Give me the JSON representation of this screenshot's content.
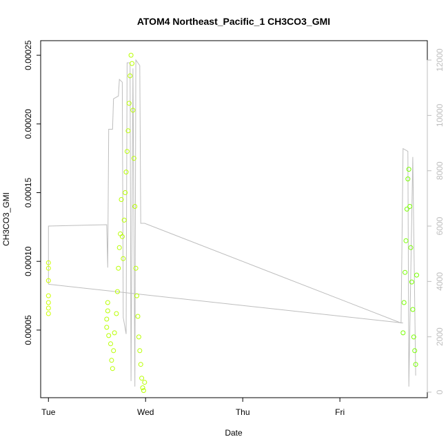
{
  "chart_data": {
    "type": "scatter",
    "title": "ATOM4 Northeast_Pacific_1 CH3CO3_GMI",
    "xlabel": "Date",
    "ylabel": "CH3CO3_GMI",
    "x_ticks": [
      "Tue",
      "Wed",
      "Thu",
      "Fri"
    ],
    "xlim_days": [
      -0.08,
      3.9
    ],
    "ylim": [
      8e-07,
      0.0002606
    ],
    "y_ticks": [
      "0.00005",
      "0.00010",
      "0.00015",
      "0.00020",
      "0.00025"
    ],
    "y_tick_values": [
      5e-05,
      0.0001,
      0.00015,
      0.0002,
      0.00025
    ],
    "right_axis": {
      "ylim": [
        -200,
        12700
      ],
      "ticks": [
        "0",
        "2000",
        "4000",
        "6000",
        "8000",
        "10000",
        "12000"
      ],
      "tick_values": [
        0,
        2000,
        4000,
        6000,
        8000,
        10000,
        12000
      ],
      "color": "#bdbdbd"
    },
    "grid": false,
    "legend": "none",
    "colors": {
      "points_early": "#ccff00",
      "points_mid": "#b8ff00",
      "points_late": "#77ff00",
      "altitude_line": "#bdbdbd"
    },
    "series": [
      {
        "kind": "points",
        "values": [
          [
            0.0,
            6.2e-05
          ],
          [
            0.0,
            6.6e-05
          ],
          [
            0.0,
            7e-05
          ],
          [
            0.0,
            7.5e-05
          ],
          [
            0.0,
            8.6e-05
          ],
          [
            0.0,
            9.5e-05
          ],
          [
            0.0,
            9.9e-05
          ],
          [
            0.6,
            5.2e-05
          ],
          [
            0.6,
            5.8e-05
          ],
          [
            0.61,
            6.4e-05
          ],
          [
            0.61,
            7e-05
          ],
          [
            0.62,
            4.6e-05
          ],
          [
            0.64,
            4e-05
          ],
          [
            0.65,
            2.8e-05
          ],
          [
            0.66,
            2.2e-05
          ],
          [
            0.67,
            3.5e-05
          ],
          [
            0.68,
            4.8e-05
          ],
          [
            0.7,
            6.2e-05
          ],
          [
            0.71,
            7.8e-05
          ],
          [
            0.72,
            9.5e-05
          ],
          [
            0.73,
            0.00011
          ],
          [
            0.74,
            0.00012
          ],
          [
            0.75,
            0.000145
          ],
          [
            0.76,
            0.000118
          ],
          [
            0.77,
            0.000102
          ],
          [
            0.78,
            0.00013
          ],
          [
            0.79,
            0.00015
          ],
          [
            0.8,
            0.000165
          ],
          [
            0.81,
            0.00018
          ],
          [
            0.82,
            0.000195
          ],
          [
            0.83,
            0.000215
          ],
          [
            0.84,
            0.000235
          ],
          [
            0.85,
            0.00025
          ],
          [
            0.86,
            0.000244
          ],
          [
            0.87,
            0.00021
          ],
          [
            0.88,
            0.000175
          ],
          [
            0.89,
            0.00014
          ],
          [
            0.9,
            9.5e-05
          ],
          [
            0.91,
            7.5e-05
          ],
          [
            0.92,
            6e-05
          ],
          [
            0.93,
            4.5e-05
          ],
          [
            0.94,
            3.5e-05
          ],
          [
            0.95,
            2.5e-05
          ],
          [
            0.96,
            1.5e-05
          ],
          [
            0.97,
            8e-06
          ],
          [
            0.98,
            6e-06
          ],
          [
            0.99,
            1.2e-05
          ],
          [
            3.65,
            4.8e-05
          ],
          [
            3.66,
            7e-05
          ],
          [
            3.67,
            9.2e-05
          ],
          [
            3.68,
            0.000115
          ],
          [
            3.69,
            0.000138
          ],
          [
            3.7,
            0.00016
          ],
          [
            3.71,
            0.000167
          ],
          [
            3.72,
            0.00014
          ],
          [
            3.73,
            0.00011
          ],
          [
            3.74,
            8.5e-05
          ],
          [
            3.75,
            6.5e-05
          ],
          [
            3.76,
            4.5e-05
          ],
          [
            3.77,
            3.5e-05
          ],
          [
            3.78,
            2.5e-05
          ],
          [
            3.79,
            9e-05
          ]
        ]
      },
      {
        "kind": "line",
        "axis": "right",
        "values": [
          [
            0.0,
            3900
          ],
          [
            0.0,
            6000
          ],
          [
            0.6,
            6050
          ],
          [
            0.61,
            4500
          ],
          [
            0.62,
            9500
          ],
          [
            0.66,
            9500
          ],
          [
            0.67,
            10600
          ],
          [
            0.72,
            10700
          ],
          [
            0.73,
            11300
          ],
          [
            0.76,
            11200
          ],
          [
            0.77,
            2700
          ],
          [
            0.8,
            2100
          ],
          [
            0.81,
            11900
          ],
          [
            0.84,
            11900
          ],
          [
            0.85,
            400
          ],
          [
            0.87,
            11700
          ],
          [
            0.89,
            200
          ],
          [
            0.9,
            12000
          ],
          [
            0.94,
            11800
          ],
          [
            0.95,
            6100
          ],
          [
            0.99,
            6100
          ],
          [
            3.63,
            2500
          ],
          [
            3.65,
            8800
          ],
          [
            3.7,
            8700
          ],
          [
            3.71,
            200
          ],
          [
            3.75,
            8500
          ],
          [
            3.78,
            600
          ]
        ]
      },
      {
        "kind": "line",
        "axis": "right",
        "values": [
          [
            0.0,
            3900
          ],
          [
            3.65,
            2500
          ]
        ]
      }
    ]
  }
}
